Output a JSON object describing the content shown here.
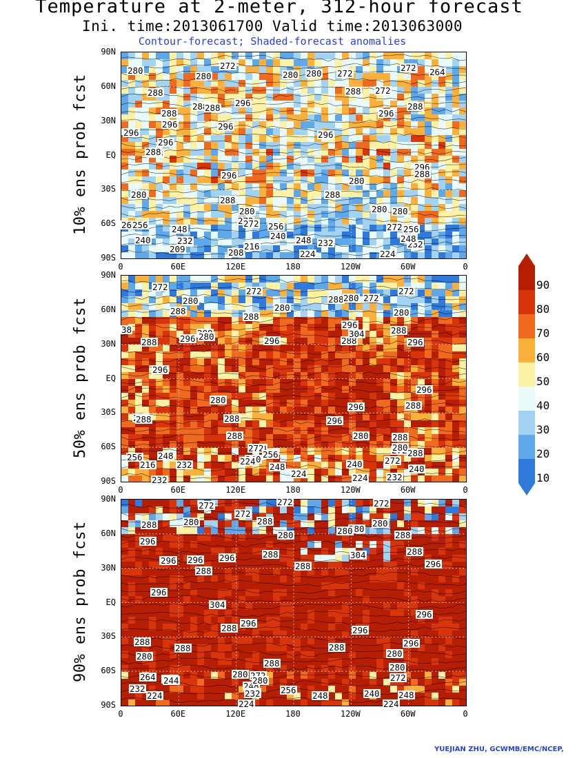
{
  "header": {
    "title": "Temperature at 2-meter, 312-hour forecast",
    "subtitle": "Ini. time:2013061700    Valid time:2013063000",
    "note": "Contour-forecast; Shaded-forecast anomalies"
  },
  "axes": {
    "y_ticks": [
      "90N",
      "60N",
      "30N",
      "EQ",
      "30S",
      "60S",
      "90S"
    ],
    "x_ticks": [
      "0",
      "60E",
      "120E",
      "180",
      "120W",
      "60W",
      "0"
    ]
  },
  "panels": [
    {
      "label": "10% ens prob fcst",
      "contour_labels": [
        "280",
        "280",
        "272",
        "280",
        "280",
        "272",
        "272",
        "264",
        "288",
        "288",
        "272",
        "288",
        "288",
        "288",
        "296",
        "288",
        "296",
        "296",
        "296",
        "296",
        "296",
        "288",
        "296",
        "288",
        "296",
        "288",
        "280",
        "288",
        "296",
        "288",
        "280",
        "280",
        "280",
        "280",
        "272",
        "264",
        "256",
        "248",
        "272",
        "256",
        "272",
        "256",
        "240",
        "248",
        "232",
        "232",
        "240",
        "232",
        "209",
        "208",
        "216",
        "224",
        "224",
        "232",
        "248"
      ]
    },
    {
      "label": "50% ens prob fcst",
      "contour_labels": [
        "272",
        "272",
        "272",
        "280",
        "280",
        "288",
        "280",
        "288",
        "272",
        "280",
        "288",
        "288",
        "280",
        "296",
        "288",
        "38",
        "288",
        "296",
        "304",
        "296",
        "296",
        "288",
        "296",
        "296",
        "288",
        "296",
        "280",
        "288",
        "288",
        "296",
        "288",
        "288",
        "280",
        "288",
        "280",
        "272",
        "256",
        "248",
        "272",
        "256",
        "240",
        "224",
        "232",
        "216",
        "248",
        "224",
        "232",
        "224",
        "240",
        "240",
        "272",
        "232",
        "280",
        "288"
      ]
    },
    {
      "label": "90% ens prob fcst",
      "contour_labels": [
        "272",
        "272",
        "272",
        "272",
        "280",
        "288",
        "280",
        "288",
        "280",
        "288",
        "296",
        "288",
        "280",
        "280",
        "296",
        "296",
        "296",
        "288",
        "296",
        "304",
        "288",
        "288",
        "296",
        "296",
        "288",
        "304",
        "296",
        "296",
        "296",
        "296",
        "288",
        "288",
        "280",
        "288",
        "280",
        "288",
        "280",
        "280",
        "272",
        "264",
        "256",
        "272",
        "248",
        "232",
        "280",
        "244",
        "256",
        "224",
        "232",
        "240",
        "248",
        "248",
        "232",
        "224",
        "224"
      ]
    }
  ],
  "colorbar": {
    "labels": [
      "90",
      "80",
      "70",
      "60",
      "50",
      "40",
      "30",
      "20",
      "10"
    ],
    "colors": [
      "#b51e00",
      "#d9350a",
      "#f06a1e",
      "#fbb03c",
      "#fdf1a6",
      "#e8fbfa",
      "#a3d3f3",
      "#5ea8ea",
      "#2f79dd"
    ]
  },
  "credit": "YUEJIAN ZHU, GCWMB/EMC/NCEP,"
}
